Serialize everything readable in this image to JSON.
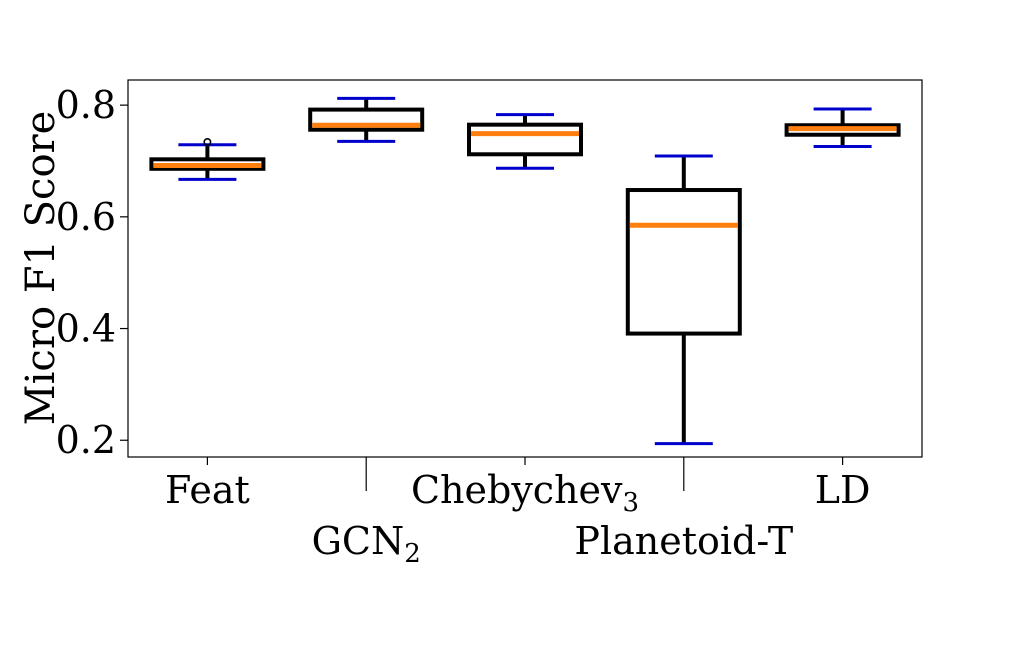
{
  "chart_data": {
    "type": "box",
    "title": "",
    "xlabel": "",
    "ylabel": "Micro F1 Score",
    "ylim": [
      0.17,
      0.845
    ],
    "yticks": [
      "0.2",
      "0.4",
      "0.6",
      "0.8"
    ],
    "grid": false,
    "colors": {
      "box": "#000000",
      "median": "#ff7f0e",
      "cap": "#0000cc",
      "axis": "#000000"
    },
    "categories": [
      {
        "label": "Feat",
        "sub": ""
      },
      {
        "label": "GCN",
        "sub": "2"
      },
      {
        "label": "Chebychev",
        "sub": "3"
      },
      {
        "label": "Planetoid-T",
        "sub": ""
      },
      {
        "label": "LD",
        "sub": ""
      }
    ],
    "boxes": [
      {
        "whislo": 0.667,
        "q1": 0.686,
        "med": 0.692,
        "q3": 0.703,
        "whishi": 0.729,
        "fliers": [
          0.734
        ]
      },
      {
        "whislo": 0.735,
        "q1": 0.756,
        "med": 0.764,
        "q3": 0.792,
        "whishi": 0.812,
        "fliers": []
      },
      {
        "whislo": 0.687,
        "q1": 0.712,
        "med": 0.749,
        "q3": 0.765,
        "whishi": 0.783,
        "fliers": []
      },
      {
        "whislo": 0.194,
        "q1": 0.391,
        "med": 0.585,
        "q3": 0.648,
        "whishi": 0.709,
        "fliers": []
      },
      {
        "whislo": 0.726,
        "q1": 0.747,
        "med": 0.758,
        "q3": 0.764,
        "whishi": 0.793,
        "fliers": []
      }
    ]
  }
}
